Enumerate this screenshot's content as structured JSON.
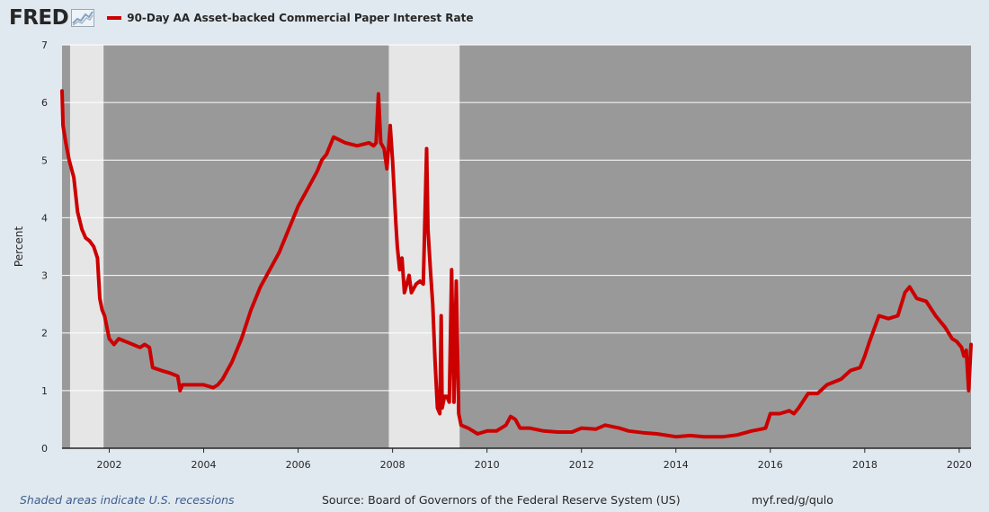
{
  "brand": {
    "logo_text": "FRED"
  },
  "legend": {
    "label": "90-Day AA Asset-backed Commercial Paper Interest Rate",
    "color": "#cc0000"
  },
  "footer": {
    "note": "Shaded areas indicate U.S. recessions",
    "source": "Source: Board of Governors of the Federal Reserve System (US)",
    "link": "myf.red/g/qulo"
  },
  "colors": {
    "page_bg": "#e1e9f0",
    "plot_bg": "#999999",
    "recession": "#e6e6e6",
    "line": "#cc0000",
    "grid": "#ffffff"
  },
  "chart_data": {
    "type": "line",
    "title": "90-Day AA Asset-backed Commercial Paper Interest Rate",
    "ylabel": "Percent",
    "xlabel": "",
    "xlim": [
      2001.0,
      2020.25
    ],
    "ylim": [
      0,
      7
    ],
    "yticks": [
      0,
      1,
      2,
      3,
      4,
      5,
      6,
      7
    ],
    "xticks": [
      2002,
      2004,
      2006,
      2008,
      2010,
      2012,
      2014,
      2016,
      2018,
      2020
    ],
    "recessions": [
      [
        2001.17,
        2001.88
      ],
      [
        2007.92,
        2009.42
      ]
    ],
    "series": [
      {
        "name": "90-Day AA Asset-backed Commercial Paper Interest Rate",
        "x": [
          2001.0,
          2001.02,
          2001.08,
          2001.15,
          2001.25,
          2001.33,
          2001.42,
          2001.5,
          2001.58,
          2001.67,
          2001.75,
          2001.8,
          2001.85,
          2001.9,
          2002.0,
          2002.1,
          2002.2,
          2002.35,
          2002.5,
          2002.65,
          2002.75,
          2002.85,
          2002.92,
          2003.1,
          2003.3,
          2003.45,
          2003.5,
          2003.55,
          2003.75,
          2004.0,
          2004.2,
          2004.3,
          2004.4,
          2004.6,
          2004.8,
          2005.0,
          2005.2,
          2005.4,
          2005.6,
          2005.8,
          2006.0,
          2006.2,
          2006.4,
          2006.5,
          2006.6,
          2006.75,
          2007.0,
          2007.25,
          2007.5,
          2007.6,
          2007.65,
          2007.7,
          2007.75,
          2007.82,
          2007.88,
          2007.95,
          2008.0,
          2008.07,
          2008.1,
          2008.15,
          2008.2,
          2008.25,
          2008.35,
          2008.4,
          2008.5,
          2008.58,
          2008.65,
          2008.72,
          2008.75,
          2008.8,
          2008.85,
          2008.9,
          2008.95,
          2009.0,
          2009.03,
          2009.05,
          2009.1,
          2009.15,
          2009.2,
          2009.25,
          2009.3,
          2009.35,
          2009.4,
          2009.45,
          2009.6,
          2009.8,
          2010.0,
          2010.2,
          2010.4,
          2010.5,
          2010.6,
          2010.7,
          2010.9,
          2011.2,
          2011.5,
          2011.8,
          2012.0,
          2012.3,
          2012.5,
          2012.8,
          2013.0,
          2013.3,
          2013.6,
          2014.0,
          2014.3,
          2014.6,
          2015.0,
          2015.3,
          2015.6,
          2015.8,
          2015.9,
          2016.0,
          2016.2,
          2016.4,
          2016.5,
          2016.6,
          2016.8,
          2017.0,
          2017.2,
          2017.5,
          2017.7,
          2017.9,
          2018.0,
          2018.1,
          2018.3,
          2018.5,
          2018.7,
          2018.85,
          2018.95,
          2019.1,
          2019.3,
          2019.5,
          2019.7,
          2019.85,
          2019.95,
          2020.05,
          2020.1,
          2020.15,
          2020.2,
          2020.25
        ],
        "values": [
          6.2,
          5.6,
          5.3,
          5.0,
          4.7,
          4.1,
          3.8,
          3.65,
          3.6,
          3.5,
          3.3,
          2.6,
          2.4,
          2.3,
          1.9,
          1.8,
          1.9,
          1.85,
          1.8,
          1.75,
          1.8,
          1.75,
          1.4,
          1.35,
          1.3,
          1.25,
          1.0,
          1.1,
          1.1,
          1.1,
          1.05,
          1.1,
          1.2,
          1.5,
          1.9,
          2.4,
          2.8,
          3.1,
          3.4,
          3.8,
          4.2,
          4.5,
          4.8,
          5.0,
          5.1,
          5.4,
          5.3,
          5.25,
          5.3,
          5.25,
          5.3,
          6.15,
          5.3,
          5.2,
          4.85,
          5.6,
          5.0,
          3.9,
          3.5,
          3.1,
          3.3,
          2.7,
          3.0,
          2.7,
          2.85,
          2.9,
          2.85,
          5.2,
          3.8,
          3.1,
          2.5,
          1.5,
          0.7,
          0.6,
          2.3,
          0.7,
          0.9,
          0.9,
          0.8,
          3.1,
          0.8,
          2.9,
          0.6,
          0.4,
          0.35,
          0.25,
          0.3,
          0.3,
          0.4,
          0.55,
          0.5,
          0.35,
          0.35,
          0.3,
          0.28,
          0.28,
          0.35,
          0.33,
          0.4,
          0.35,
          0.3,
          0.27,
          0.25,
          0.2,
          0.22,
          0.2,
          0.2,
          0.23,
          0.3,
          0.33,
          0.35,
          0.6,
          0.6,
          0.65,
          0.6,
          0.7,
          0.95,
          0.95,
          1.1,
          1.2,
          1.35,
          1.4,
          1.6,
          1.85,
          2.3,
          2.25,
          2.3,
          2.7,
          2.8,
          2.6,
          2.55,
          2.3,
          2.1,
          1.9,
          1.85,
          1.75,
          1.6,
          1.7,
          1.0,
          1.8
        ]
      }
    ]
  }
}
